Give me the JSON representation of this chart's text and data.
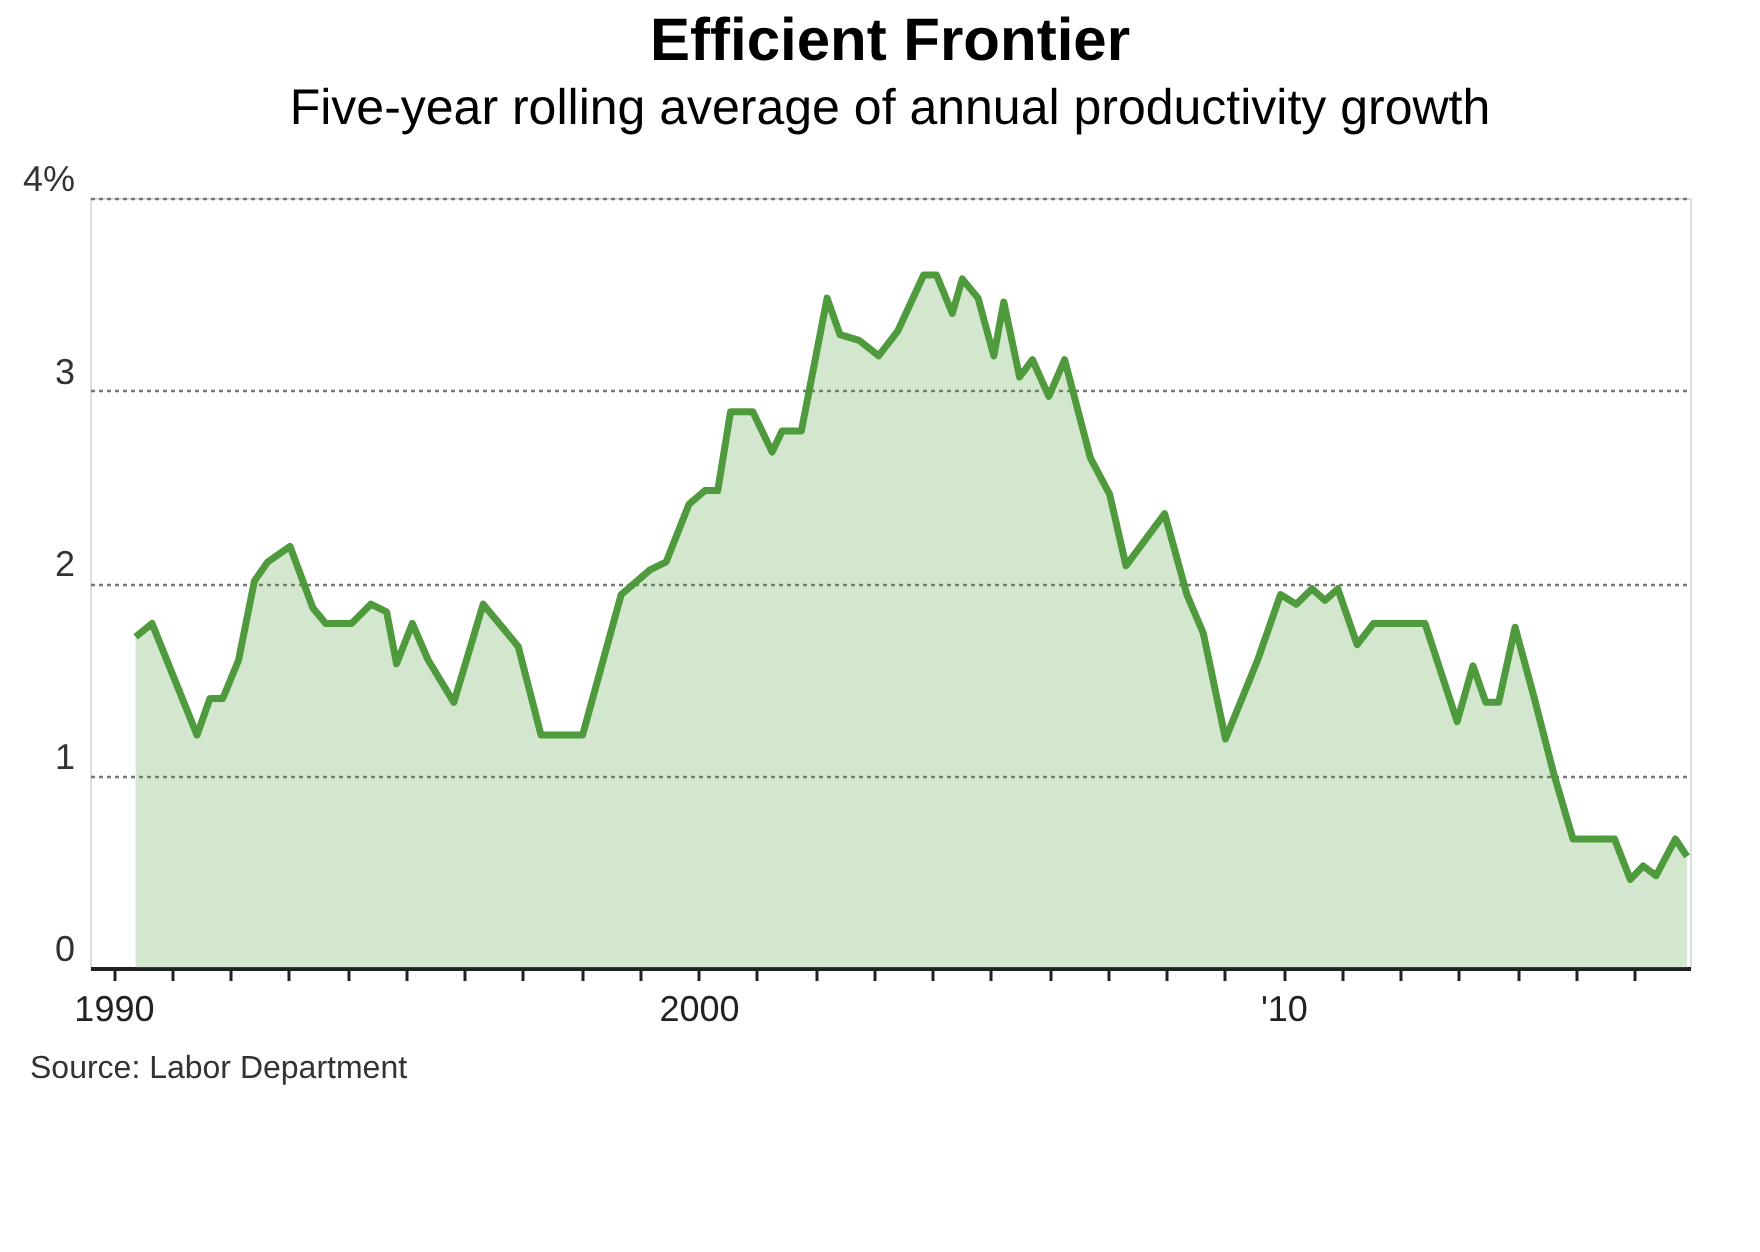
{
  "chart_data": {
    "type": "area",
    "title": "Efficient Frontier",
    "subtitle": "Five-year rolling average of annual productivity growth",
    "annotations": [
      "Source: Labor Department"
    ],
    "x": [
      1990.38,
      1990.66,
      1991.43,
      1991.65,
      1991.87,
      1992.14,
      1992.41,
      1992.64,
      1993.02,
      1993.41,
      1993.63,
      1994.07,
      1994.4,
      1994.67,
      1994.84,
      1995.11,
      1995.38,
      1995.82,
      1996.32,
      1996.92,
      1997.31,
      1998.02,
      1998.68,
      1999.18,
      1999.45,
      1999.84,
      2000.11,
      2000.33,
      2000.55,
      2000.93,
      2001.26,
      2001.43,
      2001.76,
      2002.2,
      2002.42,
      2002.75,
      2003.08,
      2003.41,
      2003.85,
      2004.07,
      2004.34,
      2004.51,
      2004.78,
      2005.05,
      2005.22,
      2005.49,
      2005.71,
      2005.99,
      2006.26,
      2006.7,
      2007.03,
      2007.31,
      2007.97,
      2008.35,
      2008.63,
      2009.01,
      2009.56,
      2009.95,
      2010.22,
      2010.49,
      2010.71,
      2010.93,
      2011.26,
      2011.54,
      2012.42,
      2012.97,
      2013.24,
      2013.46,
      2013.68,
      2013.96,
      2014.29,
      2014.62,
      2014.95,
      2015.66,
      2015.93,
      2016.15,
      2016.37,
      2016.7,
      2016.9
    ],
    "series": [
      {
        "color": "#4f9a3c",
        "values": [
          1.72,
          1.79,
          1.21,
          1.4,
          1.4,
          1.6,
          2.01,
          2.11,
          2.19,
          1.87,
          1.79,
          1.79,
          1.89,
          1.85,
          1.58,
          1.79,
          1.6,
          1.38,
          1.89,
          1.67,
          1.21,
          1.21,
          1.94,
          2.07,
          2.11,
          2.41,
          2.48,
          2.48,
          2.89,
          2.89,
          2.68,
          2.79,
          2.79,
          3.48,
          3.29,
          3.26,
          3.18,
          3.31,
          3.6,
          3.6,
          3.4,
          3.58,
          3.48,
          3.18,
          3.46,
          3.07,
          3.16,
          2.97,
          3.16,
          2.65,
          2.46,
          2.09,
          2.36,
          1.94,
          1.74,
          1.19,
          1.6,
          1.94,
          1.89,
          1.97,
          1.91,
          1.97,
          1.68,
          1.79,
          1.79,
          1.28,
          1.57,
          1.38,
          1.38,
          1.77,
          1.4,
          1.01,
          0.67,
          0.67,
          0.46,
          0.53,
          0.48,
          0.67,
          0.58
        ]
      }
    ],
    "xlim": [
      1989.6,
      2016.95
    ],
    "xticks": [
      {
        "value": 1990,
        "label": "1990"
      },
      {
        "value": 1991,
        "label": null
      },
      {
        "value": 1992,
        "label": null
      },
      {
        "value": 1993,
        "label": null
      },
      {
        "value": 1994,
        "label": null
      },
      {
        "value": 1995,
        "label": null
      },
      {
        "value": 1996,
        "label": null
      },
      {
        "value": 1997,
        "label": null
      },
      {
        "value": 1998,
        "label": null
      },
      {
        "value": 1999,
        "label": null
      },
      {
        "value": 2000,
        "label": "2000"
      },
      {
        "value": 2001,
        "label": null
      },
      {
        "value": 2002,
        "label": null
      },
      {
        "value": 2003,
        "label": null
      },
      {
        "value": 2004,
        "label": null
      },
      {
        "value": 2005,
        "label": null
      },
      {
        "value": 2006,
        "label": null
      },
      {
        "value": 2007,
        "label": null
      },
      {
        "value": 2008,
        "label": null
      },
      {
        "value": 2009,
        "label": null
      },
      {
        "value": 2010,
        "label": "'10"
      },
      {
        "value": 2011,
        "label": null
      },
      {
        "value": 2012,
        "label": null
      },
      {
        "value": 2013,
        "label": null
      },
      {
        "value": 2014,
        "label": null
      },
      {
        "value": 2015,
        "label": null
      },
      {
        "value": 2016,
        "label": null
      }
    ],
    "ylim": [
      0,
      4
    ],
    "yticks": [
      0,
      1,
      2,
      3,
      {
        "value": 4,
        "label": "4%"
      }
    ],
    "grid": "y"
  }
}
